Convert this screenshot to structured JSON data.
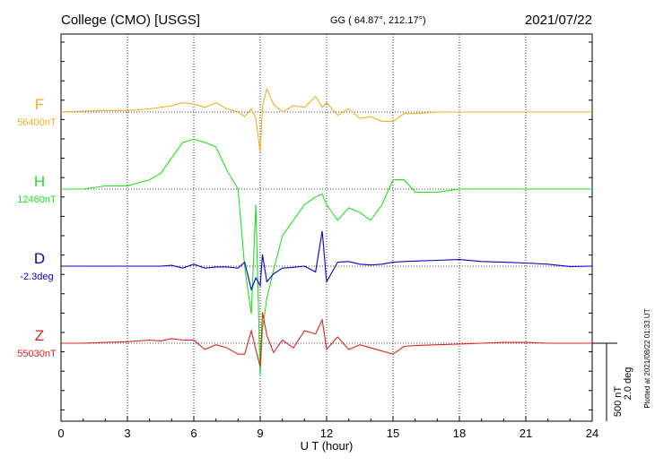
{
  "header": {
    "station": "College (CMO)  [USGS]",
    "coords": "GG ( 64.87°, 212.17°)",
    "date": "2021/07/22"
  },
  "plotted_note": "Plotted at 2021/08/22 01:33 UT",
  "scale": {
    "nt": "500 nT",
    "deg": "2.0 deg"
  },
  "chart_data": {
    "type": "line",
    "xlabel": "U T (hour)",
    "xlim": [
      0,
      24
    ],
    "xticks": [
      0,
      3,
      6,
      9,
      12,
      15,
      18,
      21,
      24
    ],
    "x": [
      0,
      1,
      2,
      3,
      4,
      4.5,
      5,
      5.5,
      6,
      6.5,
      7,
      7.5,
      8,
      8.3,
      8.6,
      8.8,
      9,
      9.1,
      9.3,
      9.6,
      10,
      10.5,
      11,
      11.5,
      11.8,
      12,
      12.5,
      13,
      13.5,
      14,
      14.5,
      15,
      15.5,
      16,
      17,
      18,
      19,
      20,
      21,
      22,
      23,
      24
    ],
    "series": [
      {
        "name": "F",
        "baseline": "56400nT",
        "color": "#f0b020",
        "deviation_nT": [
          0,
          5,
          10,
          10,
          20,
          30,
          40,
          60,
          50,
          30,
          60,
          20,
          0,
          -30,
          20,
          -40,
          -260,
          40,
          150,
          50,
          0,
          40,
          30,
          100,
          30,
          60,
          -20,
          20,
          -40,
          -30,
          -60,
          -60,
          -10,
          -10,
          0,
          0,
          0,
          0,
          0,
          0,
          0,
          0
        ]
      },
      {
        "name": "H",
        "baseline": "12460nT",
        "color": "#20e020",
        "deviation_nT": [
          0,
          0,
          20,
          20,
          60,
          100,
          200,
          300,
          320,
          300,
          270,
          120,
          0,
          -500,
          -800,
          -100,
          -1200,
          -900,
          -700,
          -520,
          -300,
          -200,
          -100,
          -50,
          -30,
          -100,
          -200,
          -120,
          -150,
          -200,
          -100,
          60,
          60,
          -20,
          -20,
          0,
          0,
          0,
          0,
          0,
          0,
          0
        ]
      },
      {
        "name": "D",
        "baseline": "-2.3deg",
        "color": "#0000d0",
        "deviation_deg": [
          0,
          0,
          0,
          0,
          0,
          0,
          0.02,
          -0.05,
          0.05,
          -0.05,
          -0.02,
          -0.02,
          -0.05,
          0.1,
          -0.6,
          -0.3,
          -0.5,
          0.3,
          -0.4,
          -0.2,
          -0.05,
          -0.03,
          0,
          -0.15,
          0.9,
          -0.4,
          0.1,
          0.12,
          0.05,
          0.03,
          0.05,
          0.1,
          0.12,
          0.13,
          0.15,
          0.17,
          0.12,
          0.1,
          0.08,
          0.05,
          -0.01,
          0
        ]
      },
      {
        "name": "Z",
        "baseline": "55030nT",
        "color": "#e02020",
        "deviation_nT": [
          0,
          0,
          5,
          10,
          20,
          15,
          30,
          20,
          20,
          -40,
          -10,
          -30,
          -70,
          -70,
          80,
          -40,
          -150,
          200,
          50,
          -60,
          20,
          -30,
          80,
          60,
          150,
          -40,
          40,
          -40,
          -10,
          -30,
          -50,
          -70,
          -20,
          -15,
          -10,
          -5,
          0,
          5,
          5,
          0,
          0,
          0
        ]
      }
    ]
  }
}
